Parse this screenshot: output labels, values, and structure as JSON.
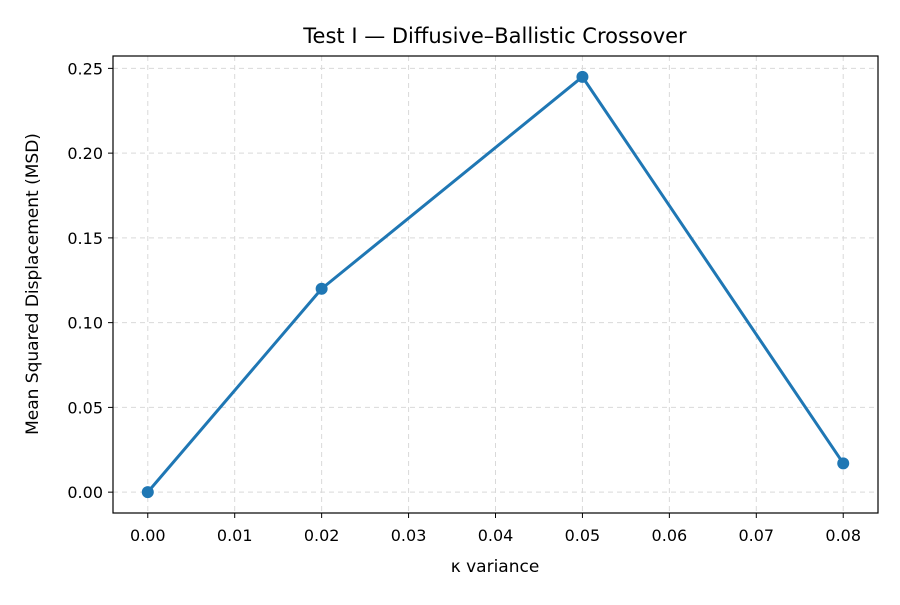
{
  "chart_data": {
    "type": "line",
    "title": "Test I — Diffusive–Ballistic Crossover",
    "xlabel": "κ variance",
    "ylabel": "Mean Squared Displacement (MSD)",
    "x": [
      0.0,
      0.02,
      0.05,
      0.08
    ],
    "series": [
      {
        "values": [
          0.0,
          0.12,
          0.245,
          0.017
        ]
      }
    ],
    "xlim": [
      -0.004,
      0.084
    ],
    "ylim": [
      -0.0123,
      0.2573
    ],
    "xticks": [
      0.0,
      0.01,
      0.02,
      0.03,
      0.04,
      0.05,
      0.06,
      0.07,
      0.08
    ],
    "xtick_labels": [
      "0.00",
      "0.01",
      "0.02",
      "0.03",
      "0.04",
      "0.05",
      "0.06",
      "0.07",
      "0.08"
    ],
    "yticks": [
      0.0,
      0.05,
      0.1,
      0.15,
      0.2,
      0.25
    ],
    "ytick_labels": [
      "0.00",
      "0.05",
      "0.10",
      "0.15",
      "0.20",
      "0.25"
    ],
    "grid": true,
    "markers": true,
    "line_color": "#1f77b4",
    "grid_color": "#d9d9d9"
  }
}
